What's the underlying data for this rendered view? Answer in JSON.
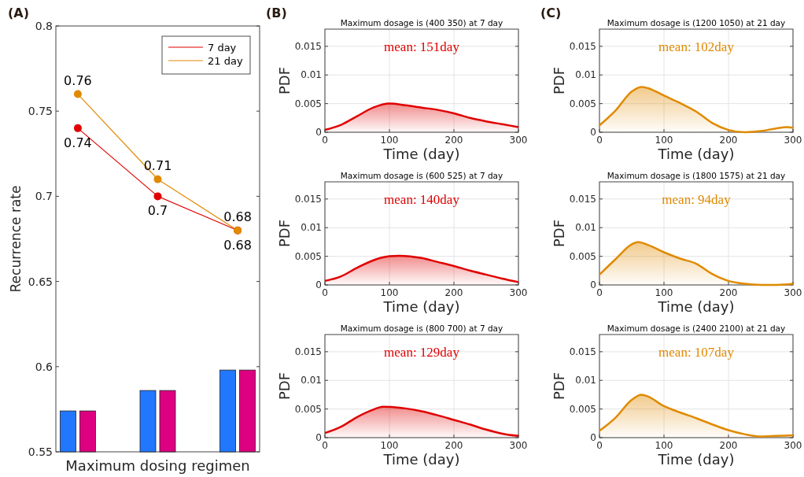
{
  "chart_data": [
    {
      "type": "line",
      "categories": [
        null,
        null,
        null
      ],
      "xlabel": "Maximum dosing regimen",
      "ylabel": "Recurrence rate",
      "ylim": [
        0.55,
        0.8
      ],
      "yticks": [
        0.55,
        0.6,
        0.65,
        0.7,
        0.75,
        0.8
      ],
      "legend": "top right",
      "marker": "circle",
      "annotations": [
        "(A)"
      ],
      "series": [
        {
          "type": "bar",
          "color": "#2277ff",
          "values": [
            0.574,
            0.586,
            0.598
          ]
        },
        {
          "type": "bar",
          "color": "#dd0080",
          "values": [
            0.574,
            0.586,
            0.598
          ]
        },
        {
          "name": "7 day",
          "color": "#e00000",
          "values": [
            0.74,
            0.7,
            0.68
          ],
          "value_labels": [
            "0.74",
            "0.7",
            "0.68"
          ]
        },
        {
          "name": "21 day",
          "color": "#e08a00",
          "values": [
            0.76,
            0.71,
            0.68
          ],
          "value_labels": [
            "0.76",
            "0.71",
            "0.68"
          ]
        }
      ]
    },
    {
      "type": "area",
      "title": "Maximum dosage is (400 350) at 7 day",
      "xlabel": "Time (day)",
      "ylabel": "PDF",
      "xlim": [
        0,
        300
      ],
      "xticks": [
        0,
        100,
        200,
        300
      ],
      "ylim": [
        0,
        0.018
      ],
      "yticks": [
        0,
        0.005,
        0.01,
        0.015
      ],
      "grid": true,
      "annotations": [
        "(B)",
        "mean: 151day"
      ],
      "x": [
        0,
        25,
        50,
        75,
        100,
        125,
        150,
        175,
        200,
        225,
        250,
        275,
        300
      ],
      "series": [
        {
          "color": "#e00000",
          "values": [
            0.0004,
            0.0013,
            0.0028,
            0.0043,
            0.005,
            0.0047,
            0.0043,
            0.0039,
            0.0033,
            0.0025,
            0.0019,
            0.0014,
            0.0009
          ]
        }
      ]
    },
    {
      "type": "area",
      "title": "Maximum dosage is (600 525) at 7 day",
      "xlabel": "Time (day)",
      "ylabel": "PDF",
      "xlim": [
        0,
        300
      ],
      "xticks": [
        0,
        100,
        200,
        300
      ],
      "ylim": [
        0,
        0.018
      ],
      "yticks": [
        0,
        0.005,
        0.01,
        0.015
      ],
      "grid": true,
      "annotations": [
        "mean: 140day"
      ],
      "x": [
        0,
        25,
        50,
        75,
        100,
        115,
        150,
        175,
        200,
        225,
        250,
        275,
        300
      ],
      "series": [
        {
          "color": "#e00000",
          "values": [
            0.0007,
            0.0015,
            0.003,
            0.0043,
            0.005,
            0.0051,
            0.0047,
            0.004,
            0.0033,
            0.0025,
            0.0018,
            0.0011,
            0.0005
          ]
        }
      ]
    },
    {
      "type": "area",
      "title": "Maximum dosage is (800 700) at 7 day",
      "xlabel": "Time (day)",
      "ylabel": "PDF",
      "xlim": [
        0,
        300
      ],
      "xticks": [
        0,
        100,
        200,
        300
      ],
      "ylim": [
        0,
        0.018
      ],
      "yticks": [
        0,
        0.005,
        0.01,
        0.015
      ],
      "grid": true,
      "annotations": [
        "mean: 129day"
      ],
      "x": [
        0,
        25,
        50,
        75,
        90,
        125,
        150,
        175,
        200,
        225,
        250,
        275,
        300
      ],
      "series": [
        {
          "color": "#e00000",
          "values": [
            0.0008,
            0.0019,
            0.0036,
            0.0049,
            0.0054,
            0.0051,
            0.0046,
            0.0039,
            0.0031,
            0.0023,
            0.0014,
            0.0007,
            0.0003
          ]
        }
      ]
    },
    {
      "type": "area",
      "title": "Maximum dosage is (1200 1050) at 21 day",
      "xlabel": "Time (day)",
      "ylabel": "PDF",
      "xlim": [
        0,
        300
      ],
      "xticks": [
        0,
        100,
        200,
        300
      ],
      "ylim": [
        0,
        0.018
      ],
      "yticks": [
        0,
        0.005,
        0.01,
        0.015
      ],
      "grid": true,
      "annotations": [
        "(C)",
        "mean: 102day"
      ],
      "x": [
        0,
        25,
        50,
        65,
        75,
        100,
        125,
        150,
        175,
        200,
        225,
        250,
        275,
        290,
        300
      ],
      "series": [
        {
          "color": "#e08a00",
          "values": [
            0.0012,
            0.0038,
            0.0071,
            0.0079,
            0.0077,
            0.0064,
            0.0051,
            0.0036,
            0.0016,
            0.0004,
            0,
            0.0002,
            0.0007,
            0.0009,
            0.0008
          ]
        }
      ]
    },
    {
      "type": "area",
      "title": "Maximum dosage is (1800 1575) at 21 day",
      "xlabel": "Time (day)",
      "ylabel": "PDF",
      "xlim": [
        0,
        300
      ],
      "xticks": [
        0,
        100,
        200,
        300
      ],
      "ylim": [
        0,
        0.018
      ],
      "yticks": [
        0,
        0.005,
        0.01,
        0.015
      ],
      "grid": true,
      "annotations": [
        "mean: 94day"
      ],
      "x": [
        0,
        25,
        50,
        60,
        75,
        100,
        125,
        150,
        175,
        200,
        225,
        250,
        275,
        300
      ],
      "series": [
        {
          "color": "#e08a00",
          "values": [
            0.0018,
            0.0045,
            0.0071,
            0.0075,
            0.007,
            0.0057,
            0.0046,
            0.0037,
            0.0019,
            0.0007,
            0.0002,
            0,
            0,
            0.0002
          ]
        }
      ]
    },
    {
      "type": "area",
      "title": "Maximum dosage is (2400 2100) at 21 day",
      "xlabel": "Time (day)",
      "ylabel": "PDF",
      "xlim": [
        0,
        300
      ],
      "xticks": [
        0,
        100,
        200,
        300
      ],
      "ylim": [
        0,
        0.018
      ],
      "yticks": [
        0,
        0.005,
        0.01,
        0.015
      ],
      "grid": true,
      "annotations": [
        "mean: 107day"
      ],
      "x": [
        0,
        25,
        50,
        65,
        75,
        100,
        125,
        150,
        175,
        200,
        225,
        250,
        275,
        300
      ],
      "series": [
        {
          "color": "#e08a00",
          "values": [
            0.0012,
            0.0035,
            0.0066,
            0.0075,
            0.0072,
            0.0055,
            0.0044,
            0.0034,
            0.0023,
            0.0013,
            0.0006,
            0.0002,
            0.0003,
            0.0004
          ]
        }
      ]
    }
  ]
}
